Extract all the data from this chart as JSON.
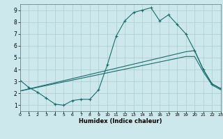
{
  "xlabel": "Humidex (Indice chaleur)",
  "xlim": [
    0,
    23
  ],
  "ylim": [
    0.5,
    9.5
  ],
  "xticks": [
    0,
    1,
    2,
    3,
    4,
    5,
    6,
    7,
    8,
    9,
    10,
    11,
    12,
    13,
    14,
    15,
    16,
    17,
    18,
    19,
    20,
    21,
    22,
    23
  ],
  "yticks": [
    1,
    2,
    3,
    4,
    5,
    6,
    7,
    8,
    9
  ],
  "bg_color": "#cce8ec",
  "line_color": "#1a6b6b",
  "grid_color": "#aacccc",
  "line1_x": [
    0,
    1,
    2,
    3,
    4,
    5,
    6,
    7,
    8,
    9,
    10,
    11,
    12,
    13,
    14,
    15,
    16,
    17,
    18,
    19,
    20,
    21,
    22,
    23
  ],
  "line1_y": [
    3.1,
    2.5,
    2.1,
    1.6,
    1.1,
    1.0,
    1.4,
    1.5,
    1.5,
    2.3,
    4.4,
    6.8,
    8.1,
    8.8,
    9.0,
    9.2,
    8.1,
    8.6,
    7.8,
    7.0,
    5.6,
    4.0,
    2.8,
    2.4
  ],
  "line2_x": [
    0,
    19,
    20,
    21,
    22,
    23
  ],
  "line2_y": [
    2.2,
    5.5,
    5.6,
    4.0,
    2.8,
    2.4
  ],
  "line3_x": [
    0,
    19,
    20,
    21,
    22,
    23
  ],
  "line3_y": [
    2.2,
    5.1,
    5.1,
    3.8,
    2.7,
    2.3
  ]
}
